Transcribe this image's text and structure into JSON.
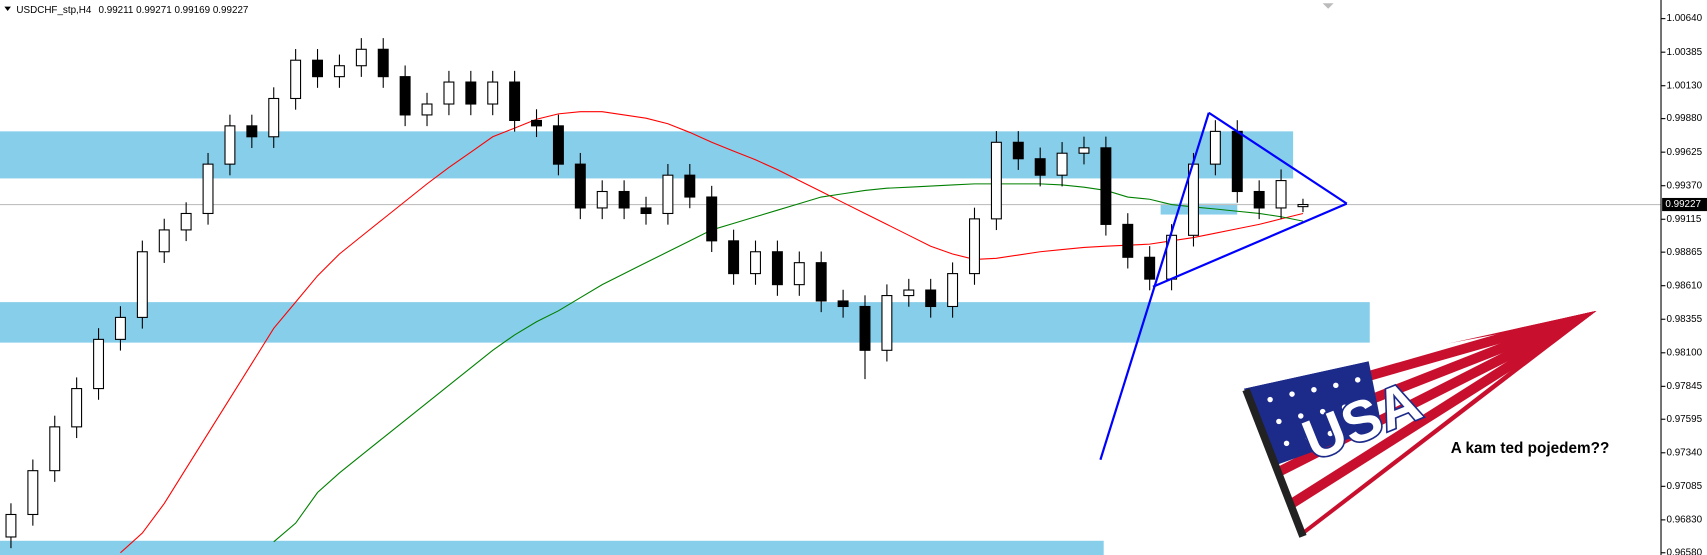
{
  "chart_data": {
    "type": "candlestick",
    "symbol": "USDCHF_stp,H4",
    "up_color": "#ffffff",
    "down_color": "#000000",
    "open": [
      0.967,
      0.96871,
      0.97204,
      0.97537,
      0.97828,
      0.98202,
      0.98369,
      0.98868,
      0.99034,
      0.99159,
      0.99534,
      0.99825,
      0.99742,
      1.00033,
      1.00324,
      1.00199,
      1.00282,
      1.00407,
      1.00199,
      0.99908,
      0.99991,
      1.00158,
      0.99991,
      1.00158,
      0.99866,
      0.99825,
      0.99534,
      0.99201,
      0.99326,
      0.99201,
      0.99159,
      0.9945,
      0.99284,
      0.98951,
      0.98702,
      0.98868,
      0.98618,
      0.98785,
      0.98494,
      0.98452,
      0.98119,
      0.98535,
      0.98577,
      0.98452,
      0.98702,
      0.99118,
      0.997,
      0.99575,
      0.9945,
      0.99617,
      0.99658,
      0.99076,
      0.98826,
      0.9866,
      0.98993,
      0.99534,
      0.99783,
      0.99326,
      0.99201,
      0.99211
    ],
    "high": [
      0.96956,
      0.97289,
      0.97622,
      0.97913,
      0.98287,
      0.98454,
      0.98953,
      0.99119,
      0.99244,
      0.99619,
      0.9991,
      0.9991,
      1.00118,
      1.00409,
      1.00409,
      1.00367,
      1.00492,
      1.00492,
      1.00284,
      1.00076,
      1.00243,
      1.00243,
      1.00243,
      1.00243,
      0.99951,
      0.9991,
      0.99619,
      0.99411,
      0.99411,
      0.99286,
      0.99535,
      0.99535,
      0.99369,
      0.99036,
      0.98953,
      0.98953,
      0.9887,
      0.9887,
      0.98579,
      0.98537,
      0.9862,
      0.98662,
      0.98662,
      0.98787,
      0.99203,
      0.99785,
      0.99785,
      0.9966,
      0.99702,
      0.99743,
      0.99743,
      0.99161,
      0.98911,
      0.99078,
      0.99619,
      0.99868,
      0.99868,
      0.99411,
      0.99494,
      0.99271
    ],
    "low": [
      0.96615,
      0.96786,
      0.97119,
      0.97452,
      0.97743,
      0.98117,
      0.98284,
      0.98783,
      0.98949,
      0.99074,
      0.99449,
      0.99657,
      0.99657,
      0.99948,
      1.00114,
      1.00114,
      1.00197,
      1.00114,
      0.99823,
      0.99823,
      0.99906,
      0.99906,
      0.99906,
      0.99781,
      0.9974,
      0.99449,
      0.99116,
      0.99116,
      0.99116,
      0.99074,
      0.99074,
      0.99199,
      0.98866,
      0.98617,
      0.98617,
      0.98533,
      0.98533,
      0.98409,
      0.98367,
      0.979,
      0.98034,
      0.9845,
      0.98367,
      0.98367,
      0.98617,
      0.99033,
      0.9949,
      0.99365,
      0.99365,
      0.99532,
      0.98991,
      0.98741,
      0.98575,
      0.98575,
      0.98908,
      0.99449,
      0.99241,
      0.99116,
      0.99116,
      0.99169
    ],
    "close": [
      0.96871,
      0.97204,
      0.97537,
      0.97828,
      0.98202,
      0.98369,
      0.98868,
      0.99034,
      0.99159,
      0.99534,
      0.99825,
      0.99742,
      1.00033,
      1.00324,
      1.00199,
      1.00282,
      1.00407,
      1.00199,
      0.99908,
      0.99991,
      1.00158,
      0.99991,
      1.00158,
      0.99866,
      0.99825,
      0.99534,
      0.99201,
      0.99326,
      0.99201,
      0.99159,
      0.9945,
      0.99284,
      0.98951,
      0.98702,
      0.98868,
      0.98618,
      0.98785,
      0.98494,
      0.98452,
      0.98119,
      0.98535,
      0.98577,
      0.98452,
      0.98702,
      0.99118,
      0.997,
      0.99575,
      0.9945,
      0.99617,
      0.99658,
      0.99076,
      0.98826,
      0.9866,
      0.98993,
      0.99534,
      0.99783,
      0.99326,
      0.99201,
      0.99409,
      0.99227
    ],
    "moving_averages": [
      {
        "color": "#ff0000",
        "values": [
          null,
          null,
          null,
          null,
          null,
          0.9658,
          0.9673,
          0.96954,
          0.97221,
          0.97487,
          0.97753,
          0.98019,
          0.98286,
          0.98485,
          0.98685,
          0.98851,
          0.98985,
          0.99118,
          0.99251,
          0.99384,
          0.99509,
          0.99625,
          0.99742,
          0.99808,
          0.99875,
          0.99916,
          0.99933,
          0.99933,
          0.99908,
          0.99883,
          0.99841,
          0.99775,
          0.997,
          0.99633,
          0.99567,
          0.99492,
          0.99409,
          0.99326,
          0.99242,
          0.99159,
          0.99076,
          0.98993,
          0.9891,
          0.98851,
          0.9881,
          0.98818,
          0.98843,
          0.98868,
          0.98885,
          0.98901,
          0.9891,
          0.98918,
          0.98926,
          0.98951,
          0.98976,
          0.99009,
          0.99043,
          0.99076,
          0.99118,
          0.99159
        ]
      },
      {
        "color": "#008000",
        "values": [
          null,
          null,
          null,
          null,
          null,
          null,
          null,
          null,
          null,
          null,
          null,
          null,
          0.96663,
          0.96805,
          0.97038,
          0.97187,
          0.97321,
          0.97454,
          0.97587,
          0.9772,
          0.97853,
          0.97986,
          0.98119,
          0.98236,
          0.98336,
          0.98419,
          0.98519,
          0.98618,
          0.98702,
          0.98785,
          0.98868,
          0.98951,
          0.99034,
          0.99084,
          0.99134,
          0.99184,
          0.99234,
          0.99284,
          0.99309,
          0.99334,
          0.99351,
          0.99359,
          0.99367,
          0.99376,
          0.99384,
          0.99384,
          0.99384,
          0.99384,
          0.99376,
          0.99359,
          0.99334,
          0.99284,
          0.99267,
          0.99227,
          0.99209,
          0.99193,
          0.99176,
          0.99159,
          0.99134,
          0.99101
        ]
      }
    ],
    "ylim": [
      0.96563,
      1.00765
    ],
    "yticks": [
      {
        "value": 1.0064,
        "label": "1.00640"
      },
      {
        "value": 1.00385,
        "label": "1.00385"
      },
      {
        "value": 1.0013,
        "label": "1.00130"
      },
      {
        "value": 0.9988,
        "label": "0.99880"
      },
      {
        "value": 0.99625,
        "label": "0.99625"
      },
      {
        "value": 0.9937,
        "label": "0.99370"
      },
      {
        "value": 0.99115,
        "label": "0.99115"
      },
      {
        "value": 0.98865,
        "label": "0.98865"
      },
      {
        "value": 0.9861,
        "label": "0.98610"
      },
      {
        "value": 0.98355,
        "label": "0.98355"
      },
      {
        "value": 0.981,
        "label": "0.98100"
      },
      {
        "value": 0.97845,
        "label": "0.97845"
      },
      {
        "value": 0.97595,
        "label": "0.97595"
      },
      {
        "value": 0.9734,
        "label": "0.97340"
      },
      {
        "value": 0.97085,
        "label": "0.97085"
      },
      {
        "value": 0.9683,
        "label": "0.96830"
      },
      {
        "value": 0.9658,
        "label": "0.96580"
      }
    ],
    "flag_text": "USA",
    "annotation": "A kam ted pojedem??"
  }
}
